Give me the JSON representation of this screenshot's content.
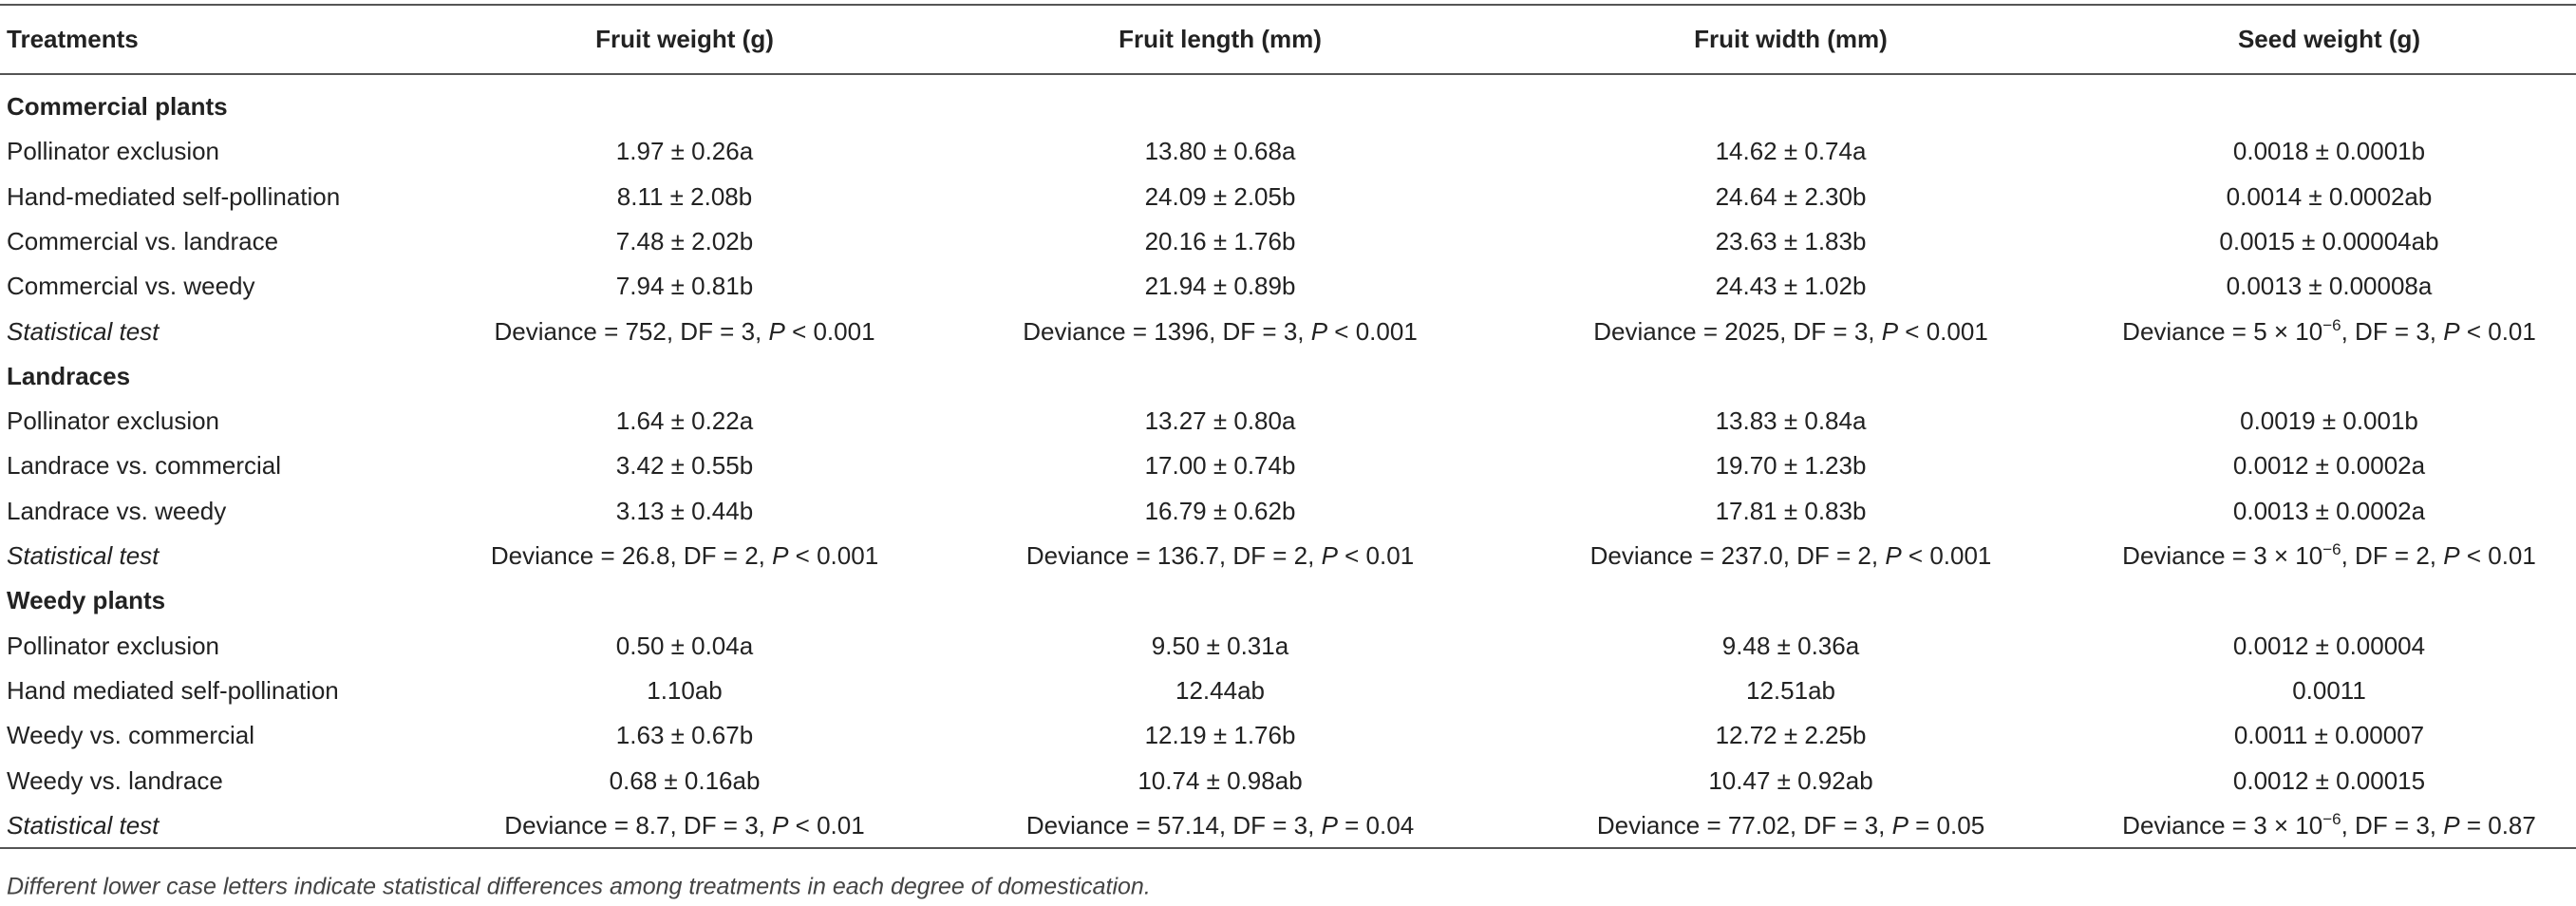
{
  "table": {
    "header": [
      "Treatments",
      "Fruit weight (g)",
      "Fruit length (mm)",
      "Fruit width (mm)",
      "Seed weight (g)"
    ],
    "sections": [
      {
        "title": "Commercial plants",
        "rows": [
          {
            "treatment": "Pollinator exclusion",
            "values": [
              "1.97 ± 0.26a",
              "13.80 ± 0.68a",
              "14.62 ± 0.74a",
              "0.0018 ± 0.0001b"
            ]
          },
          {
            "treatment": "Hand-mediated self-pollination",
            "values": [
              "8.11 ± 2.08b",
              "24.09 ± 2.05b",
              "24.64 ± 2.30b",
              "0.0014 ± 0.0002ab"
            ]
          },
          {
            "treatment": "Commercial vs. landrace",
            "values": [
              "7.48 ± 2.02b",
              "20.16 ± 1.76b",
              "23.63 ± 1.83b",
              "0.0015 ± 0.00004ab"
            ]
          },
          {
            "treatment": "Commercial vs. weedy",
            "values": [
              "7.94 ± 0.81b",
              "21.94 ± 0.89b",
              "24.43 ± 1.02b",
              "0.0013 ± 0.00008a"
            ]
          }
        ],
        "statistical_test": {
          "label": "Statistical test",
          "cells": [
            {
              "deviance": "Deviance = 752, DF = 3, ",
              "p": "P",
              "p_value": " < 0.001"
            },
            {
              "deviance": "Deviance = 1396, DF = 3, ",
              "p": "P",
              "p_value": " < 0.001"
            },
            {
              "deviance": "Deviance = 2025, DF = 3, ",
              "p": "P",
              "p_value": " < 0.001"
            },
            {
              "deviance": "Deviance = 5 × 10",
              "exponent": "−6",
              "rest": ", DF = 3, ",
              "p": "P",
              "p_value": " < 0.01"
            }
          ]
        }
      },
      {
        "title": "Landraces",
        "rows": [
          {
            "treatment": "Pollinator exclusion",
            "values": [
              "1.64 ± 0.22a",
              "13.27 ± 0.80a",
              "13.83 ± 0.84a",
              "0.0019 ± 0.001b"
            ]
          },
          {
            "treatment": "Landrace vs. commercial",
            "values": [
              "3.42 ± 0.55b",
              "17.00 ± 0.74b",
              "19.70 ± 1.23b",
              "0.0012 ± 0.0002a"
            ]
          },
          {
            "treatment": "Landrace vs. weedy",
            "values": [
              "3.13 ± 0.44b",
              "16.79 ± 0.62b",
              "17.81 ± 0.83b",
              "0.0013 ± 0.0002a"
            ]
          }
        ],
        "statistical_test": {
          "label": "Statistical test",
          "cells": [
            {
              "deviance": "Deviance = 26.8, DF = 2, ",
              "p": "P",
              "p_value": " < 0.001"
            },
            {
              "deviance": "Deviance = 136.7, DF = 2, ",
              "p": "P",
              "p_value": " < 0.01"
            },
            {
              "deviance": "Deviance = 237.0, DF = 2, ",
              "p": "P",
              "p_value": " < 0.001"
            },
            {
              "deviance": "Deviance = 3 × 10",
              "exponent": "−6",
              "rest": ", DF = 2, ",
              "p": "P",
              "p_value": " < 0.01"
            }
          ]
        }
      },
      {
        "title": "Weedy plants",
        "rows": [
          {
            "treatment": "Pollinator exclusion",
            "values": [
              "0.50 ± 0.04a",
              "9.50 ± 0.31a",
              "9.48 ± 0.36a",
              "0.0012 ± 0.00004"
            ]
          },
          {
            "treatment": "Hand mediated self-pollination",
            "values": [
              "1.10ab",
              "12.44ab",
              "12.51ab",
              "0.0011"
            ]
          },
          {
            "treatment": "Weedy vs. commercial",
            "values": [
              "1.63 ± 0.67b",
              "12.19 ± 1.76b",
              "12.72 ± 2.25b",
              "0.0011 ± 0.00007"
            ]
          },
          {
            "treatment": "Weedy vs. landrace",
            "values": [
              "0.68 ± 0.16ab",
              "10.74 ± 0.98ab",
              "10.47 ± 0.92ab",
              "0.0012 ± 0.00015"
            ]
          }
        ],
        "statistical_test": {
          "label": "Statistical test",
          "cells": [
            {
              "deviance": "Deviance = 8.7, DF = 3, ",
              "p": "P",
              "p_value": " < 0.01"
            },
            {
              "deviance": "Deviance = 57.14, DF = 3, ",
              "p": "P",
              "p_value": " = 0.04"
            },
            {
              "deviance": "Deviance = 77.02, DF = 3, ",
              "p": "P",
              "p_value": " = 0.05"
            },
            {
              "deviance": "Deviance = 3 × 10",
              "exponent": "−6",
              "rest": ", DF = 3, ",
              "p": "P",
              "p_value": " = 0.87"
            }
          ]
        }
      }
    ],
    "footnote": "Different lower case letters indicate statistical differences among treatments in each degree of domestication."
  }
}
